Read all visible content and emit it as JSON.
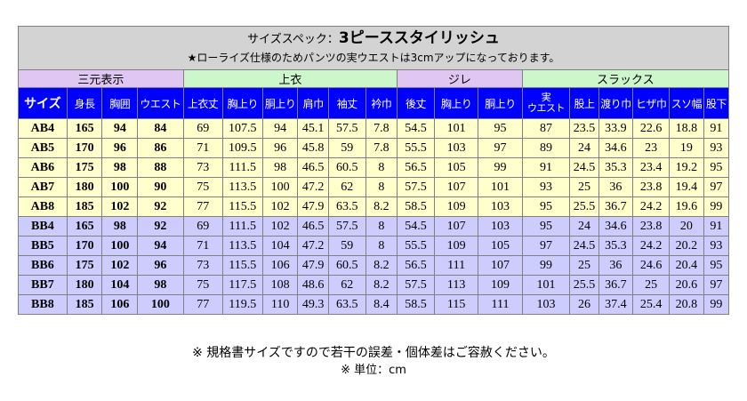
{
  "title": {
    "prefix": "サイズスペック：",
    "main": "3ピーススタイリッシュ",
    "note": "★ローライズ仕様のためパンツの実ウエストは3cmアップになっております。"
  },
  "groups": [
    "三元表示",
    "上衣",
    "ジレ",
    "スラックス"
  ],
  "headers": [
    "サイズ",
    "身長",
    "胸囲",
    "ウエスト",
    "上衣丈",
    "胸上り",
    "胴上り",
    "肩巾",
    "袖丈",
    "衿巾",
    "後丈",
    "胸上り",
    "胴上り",
    "実ウエスト",
    "股上",
    "渡り巾",
    "ヒザ巾",
    "スソ幅",
    "股下"
  ],
  "rows": [
    [
      "AB4",
      "165",
      "94",
      "84",
      "69",
      "107.5",
      "94",
      "45.1",
      "57.5",
      "7.8",
      "54.5",
      "101",
      "95",
      "87",
      "23.5",
      "33.9",
      "22.6",
      "18.8",
      "91"
    ],
    [
      "AB5",
      "170",
      "96",
      "86",
      "71",
      "109.5",
      "96",
      "45.8",
      "59",
      "7.8",
      "55.5",
      "103",
      "97",
      "89",
      "24",
      "34.6",
      "23",
      "19",
      "93"
    ],
    [
      "AB6",
      "175",
      "98",
      "88",
      "73",
      "111.5",
      "98",
      "46.5",
      "60.5",
      "8",
      "56.5",
      "105",
      "99",
      "91",
      "24.5",
      "35.3",
      "23.4",
      "19.2",
      "95"
    ],
    [
      "AB7",
      "180",
      "100",
      "90",
      "75",
      "113.5",
      "100",
      "47.2",
      "62",
      "8",
      "57.5",
      "107",
      "101",
      "93",
      "25",
      "36",
      "23.8",
      "19.4",
      "97"
    ],
    [
      "AB8",
      "185",
      "102",
      "92",
      "77",
      "115.5",
      "102",
      "47.9",
      "63.5",
      "8.2",
      "58.5",
      "109",
      "103",
      "95",
      "25.5",
      "36.7",
      "24.2",
      "19.6",
      "99"
    ],
    [
      "BB4",
      "165",
      "98",
      "92",
      "69",
      "111.5",
      "102",
      "46.5",
      "57.5",
      "8",
      "54.5",
      "107",
      "103",
      "95",
      "24",
      "34.6",
      "23.8",
      "20",
      "91"
    ],
    [
      "BB5",
      "170",
      "100",
      "94",
      "71",
      "113.5",
      "104",
      "47.2",
      "59",
      "8",
      "55.5",
      "109",
      "105",
      "97",
      "24.5",
      "35.3",
      "24.2",
      "20.2",
      "93"
    ],
    [
      "BB6",
      "175",
      "102",
      "96",
      "73",
      "115.5",
      "106",
      "47.9",
      "60.5",
      "8.2",
      "56.5",
      "111",
      "107",
      "99",
      "25",
      "36",
      "24.6",
      "20.4",
      "95"
    ],
    [
      "BB7",
      "180",
      "104",
      "98",
      "75",
      "117.5",
      "108",
      "48.6",
      "62",
      "8.2",
      "57.5",
      "113",
      "109",
      "101",
      "25.5",
      "36.7",
      "25",
      "20.6",
      "97"
    ],
    [
      "BB8",
      "185",
      "106",
      "100",
      "77",
      "119.5",
      "110",
      "49.3",
      "63.5",
      "8.4",
      "58.5",
      "115",
      "111",
      "103",
      "26",
      "37.4",
      "25.4",
      "20.8",
      "99"
    ]
  ],
  "footnotes": [
    "※ 規格書サイズですので若干の誤差・個体差はご容赦ください。",
    "※ 単位：cm"
  ],
  "colors": {
    "title_bg": "#d3d3d3",
    "group_purple": "#e0c6f3",
    "group_green": "#cbf7cb",
    "header_bg": "#0000ff",
    "row_ab": "#ffffcc",
    "row_bb": "#ccccff"
  }
}
